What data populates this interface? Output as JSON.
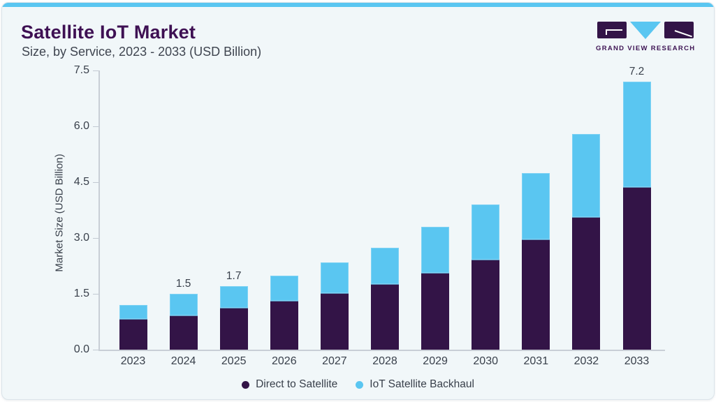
{
  "page": {
    "title": "Satellite IoT Market",
    "subtitle": "Size, by Service, 2023 - 2033 (USD Billion)",
    "logo": {
      "text": "GRAND VIEW RESEARCH"
    }
  },
  "colors": {
    "accent_blue": "#5ac6f1",
    "brand_purple": "#331447",
    "title_purple": "#3e1053",
    "card_bg": "#f1f7f9",
    "axis_gray": "#c8ced6",
    "text_dark": "#39404b"
  },
  "chart_data": {
    "type": "bar",
    "stacked": true,
    "title": "Satellite IoT Market Size, by Service, 2023 - 2033 (USD Billion)",
    "categories": [
      "2023",
      "2024",
      "2025",
      "2026",
      "2027",
      "2028",
      "2029",
      "2030",
      "2031",
      "2032",
      "2033"
    ],
    "series": [
      {
        "name": "Direct to Satellite",
        "color": "#331447",
        "values": [
          0.8,
          0.9,
          1.1,
          1.3,
          1.5,
          1.75,
          2.05,
          2.4,
          2.95,
          3.55,
          4.35
        ]
      },
      {
        "name": "IoT Satellite Backhaul",
        "color": "#5ac6f1",
        "values": [
          0.4,
          0.6,
          0.6,
          0.7,
          0.85,
          1.0,
          1.25,
          1.5,
          1.8,
          2.25,
          2.85
        ]
      }
    ],
    "totals": [
      1.2,
      1.5,
      1.7,
      2.0,
      2.35,
      2.75,
      3.3,
      3.9,
      4.75,
      5.8,
      7.2
    ],
    "bar_labels": [
      "",
      "1.5",
      "1.7",
      "",
      "",
      "",
      "",
      "",
      "",
      "",
      "7.2"
    ],
    "xlabel": "",
    "ylabel": "Market Size (USD Billion)",
    "ylim": [
      0,
      7.5
    ],
    "yticks": [
      "0.0",
      "1.5",
      "3.0",
      "4.5",
      "6.0",
      "7.5"
    ],
    "grid": false,
    "legend_position": "bottom"
  }
}
